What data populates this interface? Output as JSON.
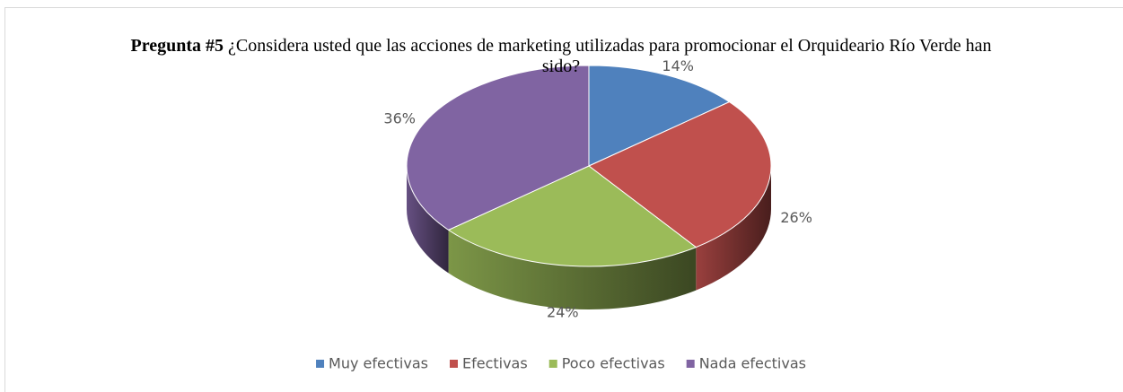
{
  "chart_data": {
    "type": "pie3d",
    "title": {
      "bold": "Pregunta #5",
      "text": "¿Considera usted que las acciones de marketing utilizadas para promocionar el Orquideario Río Verde han sido?"
    },
    "categories": [
      "Muy efectivas",
      "Efectivas",
      "Poco efectivas",
      "Nada efectivas"
    ],
    "values": [
      14,
      26,
      24,
      36
    ],
    "value_labels": [
      "14%",
      "26%",
      "24%",
      "36%"
    ],
    "colors": [
      "#4f81bd",
      "#c0504d",
      "#9bbb59",
      "#8064a2"
    ],
    "legend": "bottom"
  }
}
